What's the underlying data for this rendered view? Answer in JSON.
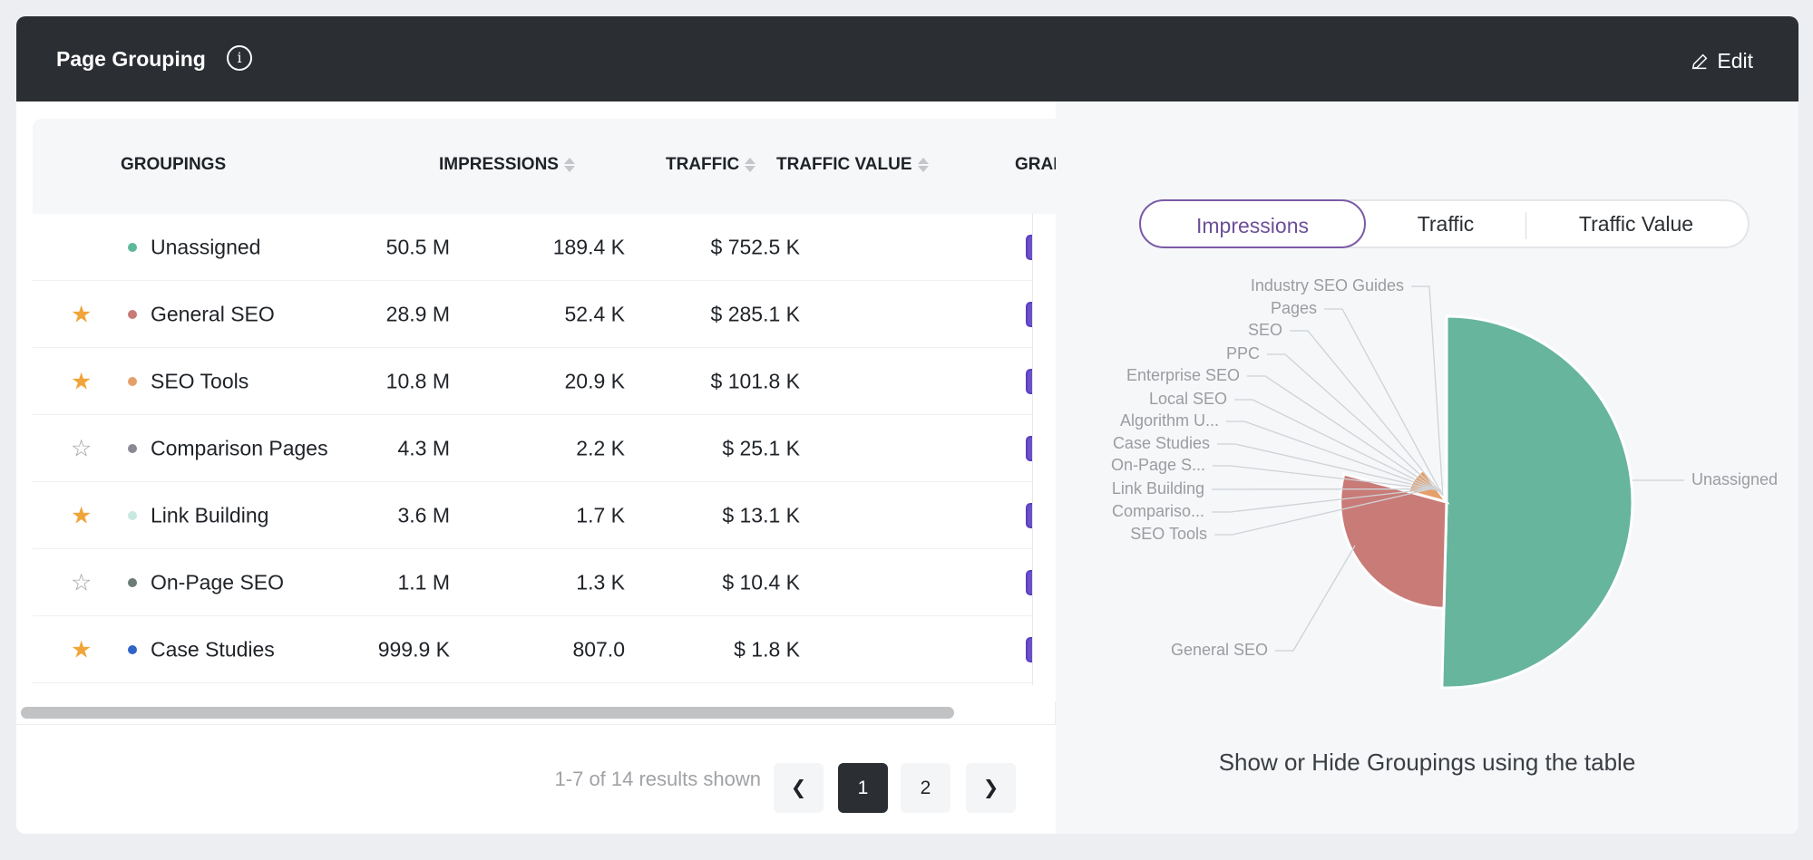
{
  "header": {
    "title": "Page Grouping",
    "info_icon": "info-icon",
    "edit_label": "Edit"
  },
  "table": {
    "columns": {
      "groupings": "GROUPINGS",
      "impressions": "IMPRESSIONS",
      "traffic": "TRAFFIC",
      "traffic_value": "TRAFFIC VALUE",
      "graph": "GRAPH"
    },
    "rows": [
      {
        "starred": null,
        "dot": "#5fb89a",
        "name": "Unassigned",
        "impressions": "50.5 M",
        "traffic": "189.4 K",
        "traffic_value": "$ 752.5 K",
        "checked": true
      },
      {
        "starred": true,
        "dot": "#c97b77",
        "name": "General SEO",
        "impressions": "28.9 M",
        "traffic": "52.4 K",
        "traffic_value": "$ 285.1 K",
        "checked": true
      },
      {
        "starred": true,
        "dot": "#e5a06a",
        "name": "SEO Tools",
        "impressions": "10.8 M",
        "traffic": "20.9 K",
        "traffic_value": "$ 101.8 K",
        "checked": true
      },
      {
        "starred": false,
        "dot": "#8a8a96",
        "name": "Comparison Pages",
        "impressions": "4.3 M",
        "traffic": "2.2 K",
        "traffic_value": "$ 25.1 K",
        "checked": true
      },
      {
        "starred": true,
        "dot": "#c9e8e0",
        "name": "Link Building",
        "impressions": "3.6 M",
        "traffic": "1.7 K",
        "traffic_value": "$ 13.1 K",
        "checked": true
      },
      {
        "starred": false,
        "dot": "#6b7c74",
        "name": "On-Page SEO",
        "impressions": "1.1 M",
        "traffic": "1.3 K",
        "traffic_value": "$ 10.4 K",
        "checked": true
      },
      {
        "starred": true,
        "dot": "#2f63c8",
        "name": "Case Studies",
        "impressions": "999.9 K",
        "traffic": "807.0",
        "traffic_value": "$ 1.8 K",
        "checked": true
      }
    ]
  },
  "pagination": {
    "summary": "1-7 of 14 results shown",
    "pages": [
      "1",
      "2"
    ],
    "current": "1",
    "prev_icon": "chevron-left-icon",
    "next_icon": "chevron-right-icon"
  },
  "chart_panel": {
    "toggle": [
      "Impressions",
      "Traffic",
      "Traffic Value"
    ],
    "active_toggle": "Impressions",
    "hint": "Show or Hide Groupings using the table"
  },
  "colors": {
    "header": "#2b2e33",
    "accent": "#6b50c9",
    "star": "#f0a53a"
  },
  "chart_data": {
    "type": "pie",
    "variant": "rose",
    "metric": "Impressions (M)",
    "slices": [
      {
        "label": "Unassigned",
        "value": 50.5,
        "color": "#66b59c"
      },
      {
        "label": "General SEO",
        "value": 28.9,
        "color": "#c97b77"
      },
      {
        "label": "SEO Tools",
        "value": 10.8,
        "color": "#e5a06a"
      },
      {
        "label": "Compariso...",
        "value": 4.3,
        "color": "#8a8a96"
      },
      {
        "label": "Link Building",
        "value": 3.6,
        "color": "#c9e8e0"
      },
      {
        "label": "On-Page S...",
        "value": 1.1,
        "color": "#6b7c74"
      },
      {
        "label": "Case Studies",
        "value": 0.9999,
        "color": "#2f63c8"
      },
      {
        "label": "Algorithm U...",
        "value": null,
        "color": "#cccccc"
      },
      {
        "label": "Local SEO",
        "value": null,
        "color": "#cccccc"
      },
      {
        "label": "Enterprise SEO",
        "value": null,
        "color": "#cccccc"
      },
      {
        "label": "PPC",
        "value": null,
        "color": "#cccccc"
      },
      {
        "label": "SEO",
        "value": null,
        "color": "#cccccc"
      },
      {
        "label": "Pages",
        "value": null,
        "color": "#cccccc"
      },
      {
        "label": "Industry SEO Guides",
        "value": null,
        "color": "#cccccc"
      }
    ]
  }
}
